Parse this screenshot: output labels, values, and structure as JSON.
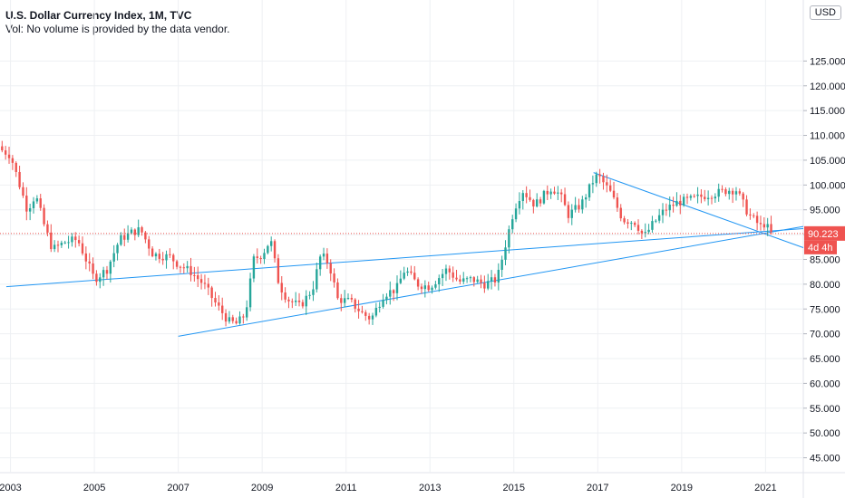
{
  "header": {
    "title": "U.S. Dollar Currency Index, 1M, TVC",
    "subtitle": "Vol: No volume is provided by the data vendor.",
    "currency": "USD"
  },
  "price_label": {
    "value": "90.223",
    "countdown": "4d 4h"
  },
  "colors": {
    "up": "#26a69a",
    "down": "#ef5350",
    "trendline": "#2196f3",
    "price_line": "#ef5350",
    "grid": "#eef0f3"
  },
  "chart_data": {
    "type": "candlestick",
    "title": "U.S. Dollar Currency Index, 1M, TVC",
    "x_ticks": [
      "2003",
      "2005",
      "2007",
      "2009",
      "2011",
      "2013",
      "2015",
      "2017",
      "2019",
      "2021"
    ],
    "y_ticks": [
      "45.000",
      "50.000",
      "55.000",
      "60.000",
      "65.000",
      "70.000",
      "75.000",
      "80.000",
      "85.000",
      "90.000",
      "95.000",
      "100.000",
      "105.000",
      "110.000",
      "115.000",
      "120.000",
      "125.000"
    ],
    "ylim": [
      42,
      130
    ],
    "xlim": [
      2002.75,
      2021.9
    ],
    "last_price": 90.223,
    "anchors": [
      [
        2002.8,
        107.0
      ],
      [
        2003.0,
        106.0
      ],
      [
        2003.2,
        100.5
      ],
      [
        2003.4,
        95.0
      ],
      [
        2003.6,
        98.0
      ],
      [
        2003.8,
        92.0
      ],
      [
        2004.0,
        87.0
      ],
      [
        2004.3,
        88.5
      ],
      [
        2004.6,
        89.0
      ],
      [
        2004.8,
        85.0
      ],
      [
        2005.0,
        81.0
      ],
      [
        2005.3,
        83.0
      ],
      [
        2005.6,
        89.0
      ],
      [
        2005.9,
        90.5
      ],
      [
        2006.1,
        91.0
      ],
      [
        2006.4,
        86.0
      ],
      [
        2006.8,
        85.5
      ],
      [
        2007.0,
        84.0
      ],
      [
        2007.3,
        82.5
      ],
      [
        2007.6,
        80.0
      ],
      [
        2007.9,
        76.0
      ],
      [
        2008.2,
        72.5
      ],
      [
        2008.4,
        72.0
      ],
      [
        2008.6,
        74.0
      ],
      [
        2008.8,
        85.0
      ],
      [
        2009.0,
        86.0
      ],
      [
        2009.2,
        89.0
      ],
      [
        2009.4,
        80.0
      ],
      [
        2009.6,
        77.0
      ],
      [
        2009.9,
        75.5
      ],
      [
        2010.2,
        79.0
      ],
      [
        2010.4,
        86.0
      ],
      [
        2010.6,
        84.0
      ],
      [
        2010.8,
        77.0
      ],
      [
        2011.1,
        76.5
      ],
      [
        2011.4,
        74.0
      ],
      [
        2011.6,
        73.0
      ],
      [
        2011.9,
        78.0
      ],
      [
        2012.2,
        79.0
      ],
      [
        2012.4,
        83.0
      ],
      [
        2012.7,
        80.0
      ],
      [
        2013.0,
        79.5
      ],
      [
        2013.4,
        83.0
      ],
      [
        2013.7,
        80.5
      ],
      [
        2014.0,
        81.0
      ],
      [
        2014.3,
        80.0
      ],
      [
        2014.6,
        81.0
      ],
      [
        2014.8,
        88.0
      ],
      [
        2015.0,
        95.0
      ],
      [
        2015.2,
        99.0
      ],
      [
        2015.5,
        96.0
      ],
      [
        2015.9,
        99.5
      ],
      [
        2016.1,
        98.0
      ],
      [
        2016.3,
        94.0
      ],
      [
        2016.6,
        96.0
      ],
      [
        2016.9,
        101.0
      ],
      [
        2017.0,
        102.0
      ],
      [
        2017.3,
        98.5
      ],
      [
        2017.6,
        93.0
      ],
      [
        2017.9,
        92.5
      ],
      [
        2018.1,
        89.5
      ],
      [
        2018.3,
        92.0
      ],
      [
        2018.6,
        95.0
      ],
      [
        2018.9,
        96.5
      ],
      [
        2019.2,
        97.0
      ],
      [
        2019.6,
        98.0
      ],
      [
        2019.9,
        98.5
      ],
      [
        2020.1,
        99.0
      ],
      [
        2020.3,
        99.0
      ],
      [
        2020.6,
        94.0
      ],
      [
        2020.9,
        91.5
      ],
      [
        2021.0,
        92.5
      ],
      [
        2021.1,
        90.2
      ]
    ],
    "trendlines": [
      {
        "from": [
          2002.9,
          79.5
        ],
        "to": [
          2021.4,
          90.9
        ],
        "extend": true
      },
      {
        "from": [
          2007.0,
          69.5
        ],
        "to": [
          2021.4,
          90.9
        ],
        "extend": true
      },
      {
        "from": [
          2016.9,
          102.5
        ],
        "to": [
          2020.9,
          90.4
        ],
        "extend": true
      }
    ],
    "price_line": 90.223
  }
}
